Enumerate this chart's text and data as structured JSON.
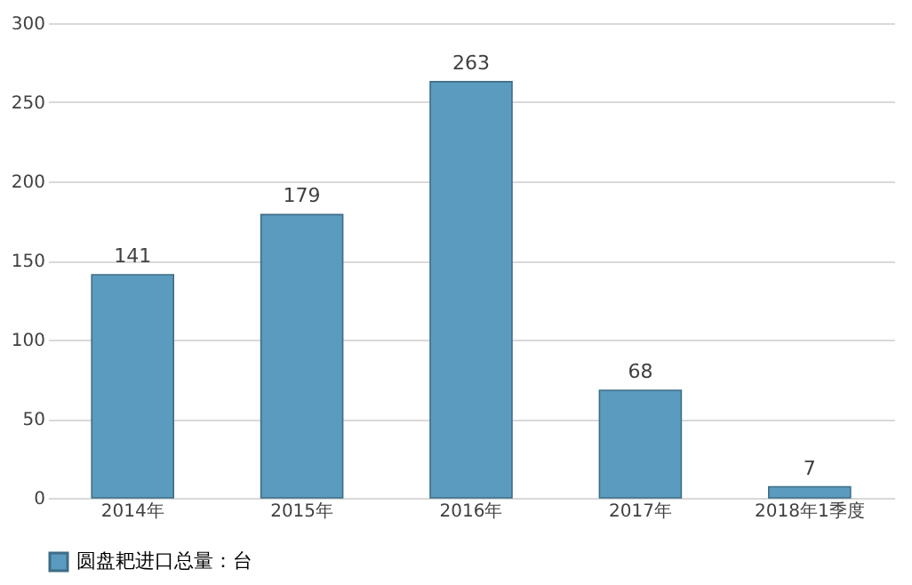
{
  "chart_data": {
    "type": "bar",
    "categories": [
      "2014年",
      "2015年",
      "2016年",
      "2017年",
      "2018年1季度"
    ],
    "series": [
      {
        "name": "圆盘耙进口总量：台",
        "color": "#5b9bbf",
        "values": [
          141,
          179,
          263,
          68,
          7
        ]
      }
    ],
    "ylim": [
      0,
      300
    ],
    "yticks": [
      0,
      50,
      100,
      150,
      200,
      250,
      300
    ],
    "grid": "y",
    "legend": "bottom",
    "data_labels": true
  }
}
